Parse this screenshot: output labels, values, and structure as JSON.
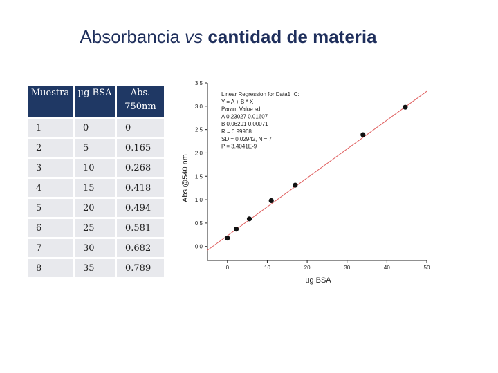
{
  "title": [
    "Absorbancia ",
    "vs",
    " cantidad de materia"
  ],
  "table": {
    "header": [
      "Muestra",
      "µg BSA",
      "Abs. 750nm"
    ],
    "rows": [
      [
        "1",
        "0",
        "0"
      ],
      [
        "2",
        "5",
        "0.165"
      ],
      [
        "3",
        "10",
        "0.268"
      ],
      [
        "4",
        "15",
        "0.418"
      ],
      [
        "5",
        "20",
        "0.494"
      ],
      [
        "6",
        "25",
        "0.581"
      ],
      [
        "7",
        "30",
        "0.682"
      ],
      [
        "8",
        "35",
        "0.789"
      ]
    ]
  },
  "chart_data": {
    "type": "scatter",
    "x_label": "ug BSA",
    "y_label": "Abs @540 nm",
    "annotation": [
      "Linear Regression for Data1_C:",
      "Y = A + B * X",
      "Param  Value  sd",
      "A  0.23027  0.01607",
      "B  0.06291  0.00071",
      "R  = 0.99968",
      "SD = 0.02942, N = 7",
      "P = 3.4041E-9"
    ],
    "xlim": [
      -5,
      50
    ],
    "ylim": [
      -0.3,
      3.5
    ],
    "xticks": [
      0,
      10,
      20,
      30,
      40,
      50
    ],
    "yticks": [
      {
        "value": 0,
        "label": "0.0"
      },
      0.5,
      {
        "value": 1,
        "label": "1.0"
      },
      1.5,
      {
        "value": 2,
        "label": "2.0"
      },
      2.5,
      {
        "value": 3,
        "label": "3.0"
      },
      3.5
    ],
    "series": [
      {
        "color": "#111111",
        "x": [
          0,
          2.2,
          5.5,
          11,
          17,
          34,
          44.6
        ],
        "values": [
          0.18,
          0.37,
          0.59,
          0.98,
          1.31,
          2.39,
          2.98
        ]
      }
    ],
    "fit": {
      "color": "#e06060",
      "x": [
        -5,
        50
      ],
      "values": [
        -0.08,
        3.32
      ]
    }
  }
}
